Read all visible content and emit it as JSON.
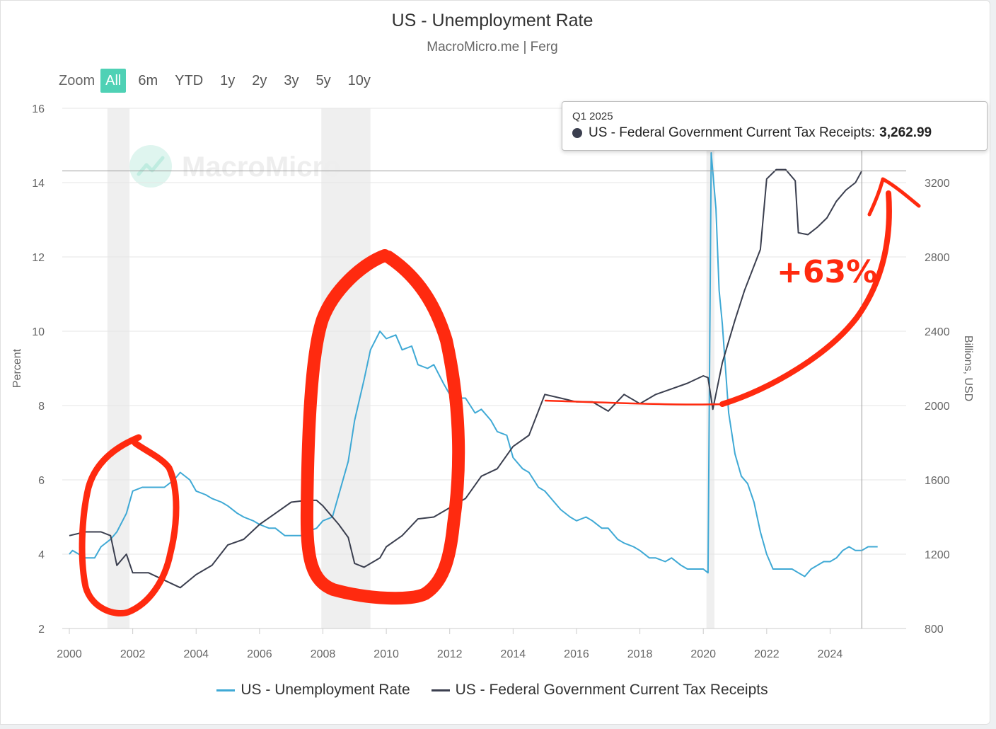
{
  "title": "US - Unemployment Rate",
  "subtitle": "MacroMicro.me | Ferg",
  "watermark": "MacroMicro",
  "zoom": {
    "label": "Zoom",
    "buttons": [
      "All",
      "6m",
      "YTD",
      "1y",
      "2y",
      "3y",
      "5y",
      "10y"
    ],
    "active": "All"
  },
  "colors": {
    "unemployment": "#3fa9d5",
    "tax": "#3b3f4f",
    "annotation": "#ff2a0f",
    "recession": "#efefef",
    "active_zoom": "#4fd1b5"
  },
  "tooltip": {
    "date": "Q1 2025",
    "series": "US - Federal Government Current Tax Receipts:",
    "value": "3,262.99"
  },
  "annotation_text": "+63%",
  "chart_data": {
    "type": "line",
    "title": "US - Unemployment Rate",
    "x_ticks": [
      "2000",
      "2002",
      "2004",
      "2006",
      "2008",
      "2010",
      "2012",
      "2014",
      "2016",
      "2018",
      "2020",
      "2022",
      "2024"
    ],
    "y_left": {
      "label": "Percent",
      "range": [
        2,
        16
      ],
      "ticks": [
        "2",
        "4",
        "6",
        "8",
        "10",
        "12",
        "14",
        "16"
      ]
    },
    "y_right": {
      "label": "Billions, USD",
      "range": [
        800,
        3600
      ],
      "ticks": [
        "800",
        "1200",
        "1600",
        "2000",
        "2400",
        "2800",
        "3200"
      ]
    },
    "recessions": [
      [
        2001.2,
        2001.9
      ],
      [
        2007.95,
        2009.5
      ],
      [
        2020.1,
        2020.35
      ]
    ],
    "series": [
      {
        "name": "US - Unemployment Rate",
        "axis": "left",
        "points": [
          [
            2000,
            4.0
          ],
          [
            2000.1,
            4.1
          ],
          [
            2000.3,
            4.0
          ],
          [
            2000.5,
            3.9
          ],
          [
            2000.8,
            3.9
          ],
          [
            2001.0,
            4.2
          ],
          [
            2001.3,
            4.4
          ],
          [
            2001.5,
            4.6
          ],
          [
            2001.8,
            5.1
          ],
          [
            2002.0,
            5.7
          ],
          [
            2002.3,
            5.8
          ],
          [
            2002.5,
            5.8
          ],
          [
            2002.8,
            5.8
          ],
          [
            2003.0,
            5.8
          ],
          [
            2003.3,
            6.0
          ],
          [
            2003.5,
            6.2
          ],
          [
            2003.8,
            6.0
          ],
          [
            2004.0,
            5.7
          ],
          [
            2004.3,
            5.6
          ],
          [
            2004.5,
            5.5
          ],
          [
            2004.8,
            5.4
          ],
          [
            2005.0,
            5.3
          ],
          [
            2005.3,
            5.1
          ],
          [
            2005.5,
            5.0
          ],
          [
            2005.8,
            4.9
          ],
          [
            2006.0,
            4.8
          ],
          [
            2006.3,
            4.7
          ],
          [
            2006.5,
            4.7
          ],
          [
            2006.8,
            4.5
          ],
          [
            2007.0,
            4.5
          ],
          [
            2007.3,
            4.5
          ],
          [
            2007.5,
            4.6
          ],
          [
            2007.8,
            4.7
          ],
          [
            2008.0,
            4.9
          ],
          [
            2008.3,
            5.0
          ],
          [
            2008.5,
            5.6
          ],
          [
            2008.8,
            6.5
          ],
          [
            2009.0,
            7.6
          ],
          [
            2009.3,
            8.7
          ],
          [
            2009.5,
            9.5
          ],
          [
            2009.8,
            10.0
          ],
          [
            2010.0,
            9.8
          ],
          [
            2010.3,
            9.9
          ],
          [
            2010.5,
            9.5
          ],
          [
            2010.8,
            9.6
          ],
          [
            2011.0,
            9.1
          ],
          [
            2011.3,
            9.0
          ],
          [
            2011.5,
            9.1
          ],
          [
            2011.8,
            8.6
          ],
          [
            2012.0,
            8.3
          ],
          [
            2012.3,
            8.2
          ],
          [
            2012.5,
            8.2
          ],
          [
            2012.8,
            7.8
          ],
          [
            2013.0,
            7.9
          ],
          [
            2013.3,
            7.6
          ],
          [
            2013.5,
            7.3
          ],
          [
            2013.8,
            7.2
          ],
          [
            2014.0,
            6.6
          ],
          [
            2014.3,
            6.3
          ],
          [
            2014.5,
            6.2
          ],
          [
            2014.8,
            5.8
          ],
          [
            2015.0,
            5.7
          ],
          [
            2015.3,
            5.4
          ],
          [
            2015.5,
            5.2
          ],
          [
            2015.8,
            5.0
          ],
          [
            2016.0,
            4.9
          ],
          [
            2016.3,
            5.0
          ],
          [
            2016.5,
            4.9
          ],
          [
            2016.8,
            4.7
          ],
          [
            2017.0,
            4.7
          ],
          [
            2017.3,
            4.4
          ],
          [
            2017.5,
            4.3
          ],
          [
            2017.8,
            4.2
          ],
          [
            2018.0,
            4.1
          ],
          [
            2018.3,
            3.9
          ],
          [
            2018.5,
            3.9
          ],
          [
            2018.8,
            3.8
          ],
          [
            2019.0,
            3.9
          ],
          [
            2019.3,
            3.7
          ],
          [
            2019.5,
            3.6
          ],
          [
            2019.8,
            3.6
          ],
          [
            2020.0,
            3.6
          ],
          [
            2020.15,
            3.5
          ],
          [
            2020.25,
            14.8
          ],
          [
            2020.4,
            13.3
          ],
          [
            2020.5,
            11.1
          ],
          [
            2020.6,
            10.2
          ],
          [
            2020.8,
            7.8
          ],
          [
            2021.0,
            6.7
          ],
          [
            2021.2,
            6.1
          ],
          [
            2021.4,
            5.9
          ],
          [
            2021.6,
            5.4
          ],
          [
            2021.8,
            4.6
          ],
          [
            2022.0,
            4.0
          ],
          [
            2022.2,
            3.6
          ],
          [
            2022.4,
            3.6
          ],
          [
            2022.6,
            3.6
          ],
          [
            2022.8,
            3.6
          ],
          [
            2023.0,
            3.5
          ],
          [
            2023.2,
            3.4
          ],
          [
            2023.4,
            3.6
          ],
          [
            2023.6,
            3.7
          ],
          [
            2023.8,
            3.8
          ],
          [
            2024.0,
            3.8
          ],
          [
            2024.2,
            3.9
          ],
          [
            2024.4,
            4.1
          ],
          [
            2024.6,
            4.2
          ],
          [
            2024.8,
            4.1
          ],
          [
            2025.0,
            4.1
          ],
          [
            2025.2,
            4.2
          ],
          [
            2025.4,
            4.2
          ],
          [
            2025.5,
            4.2
          ]
        ]
      },
      {
        "name": "US - Federal Government Current Tax Receipts",
        "axis": "right",
        "points": [
          [
            2000,
            1300
          ],
          [
            2000.5,
            1320
          ],
          [
            2001.0,
            1320
          ],
          [
            2001.3,
            1300
          ],
          [
            2001.5,
            1140
          ],
          [
            2001.8,
            1200
          ],
          [
            2002.0,
            1100
          ],
          [
            2002.5,
            1100
          ],
          [
            2003.0,
            1060
          ],
          [
            2003.5,
            1020
          ],
          [
            2004.0,
            1090
          ],
          [
            2004.5,
            1140
          ],
          [
            2005.0,
            1250
          ],
          [
            2005.5,
            1280
          ],
          [
            2006.0,
            1360
          ],
          [
            2006.5,
            1420
          ],
          [
            2007.0,
            1480
          ],
          [
            2007.5,
            1490
          ],
          [
            2007.8,
            1490
          ],
          [
            2008.0,
            1460
          ],
          [
            2008.3,
            1400
          ],
          [
            2008.5,
            1360
          ],
          [
            2008.8,
            1290
          ],
          [
            2009.0,
            1150
          ],
          [
            2009.3,
            1130
          ],
          [
            2009.5,
            1150
          ],
          [
            2009.8,
            1180
          ],
          [
            2010.0,
            1240
          ],
          [
            2010.5,
            1300
          ],
          [
            2011.0,
            1390
          ],
          [
            2011.5,
            1400
          ],
          [
            2012.0,
            1450
          ],
          [
            2012.5,
            1500
          ],
          [
            2013.0,
            1620
          ],
          [
            2013.5,
            1660
          ],
          [
            2014.0,
            1780
          ],
          [
            2014.5,
            1840
          ],
          [
            2015.0,
            2060
          ],
          [
            2015.5,
            2040
          ],
          [
            2016.0,
            2020
          ],
          [
            2016.5,
            2020
          ],
          [
            2017.0,
            1970
          ],
          [
            2017.5,
            2060
          ],
          [
            2018.0,
            2010
          ],
          [
            2018.5,
            2060
          ],
          [
            2019.0,
            2090
          ],
          [
            2019.5,
            2120
          ],
          [
            2020.0,
            2160
          ],
          [
            2020.15,
            2150
          ],
          [
            2020.3,
            1980
          ],
          [
            2020.6,
            2230
          ],
          [
            2021.0,
            2460
          ],
          [
            2021.3,
            2620
          ],
          [
            2021.8,
            2840
          ],
          [
            2022.0,
            3220
          ],
          [
            2022.3,
            3270
          ],
          [
            2022.6,
            3270
          ],
          [
            2022.9,
            3210
          ],
          [
            2023.0,
            2930
          ],
          [
            2023.3,
            2920
          ],
          [
            2023.6,
            2960
          ],
          [
            2023.9,
            3010
          ],
          [
            2024.2,
            3100
          ],
          [
            2024.5,
            3160
          ],
          [
            2024.8,
            3200
          ],
          [
            2025.0,
            3262.99
          ]
        ]
      }
    ]
  }
}
